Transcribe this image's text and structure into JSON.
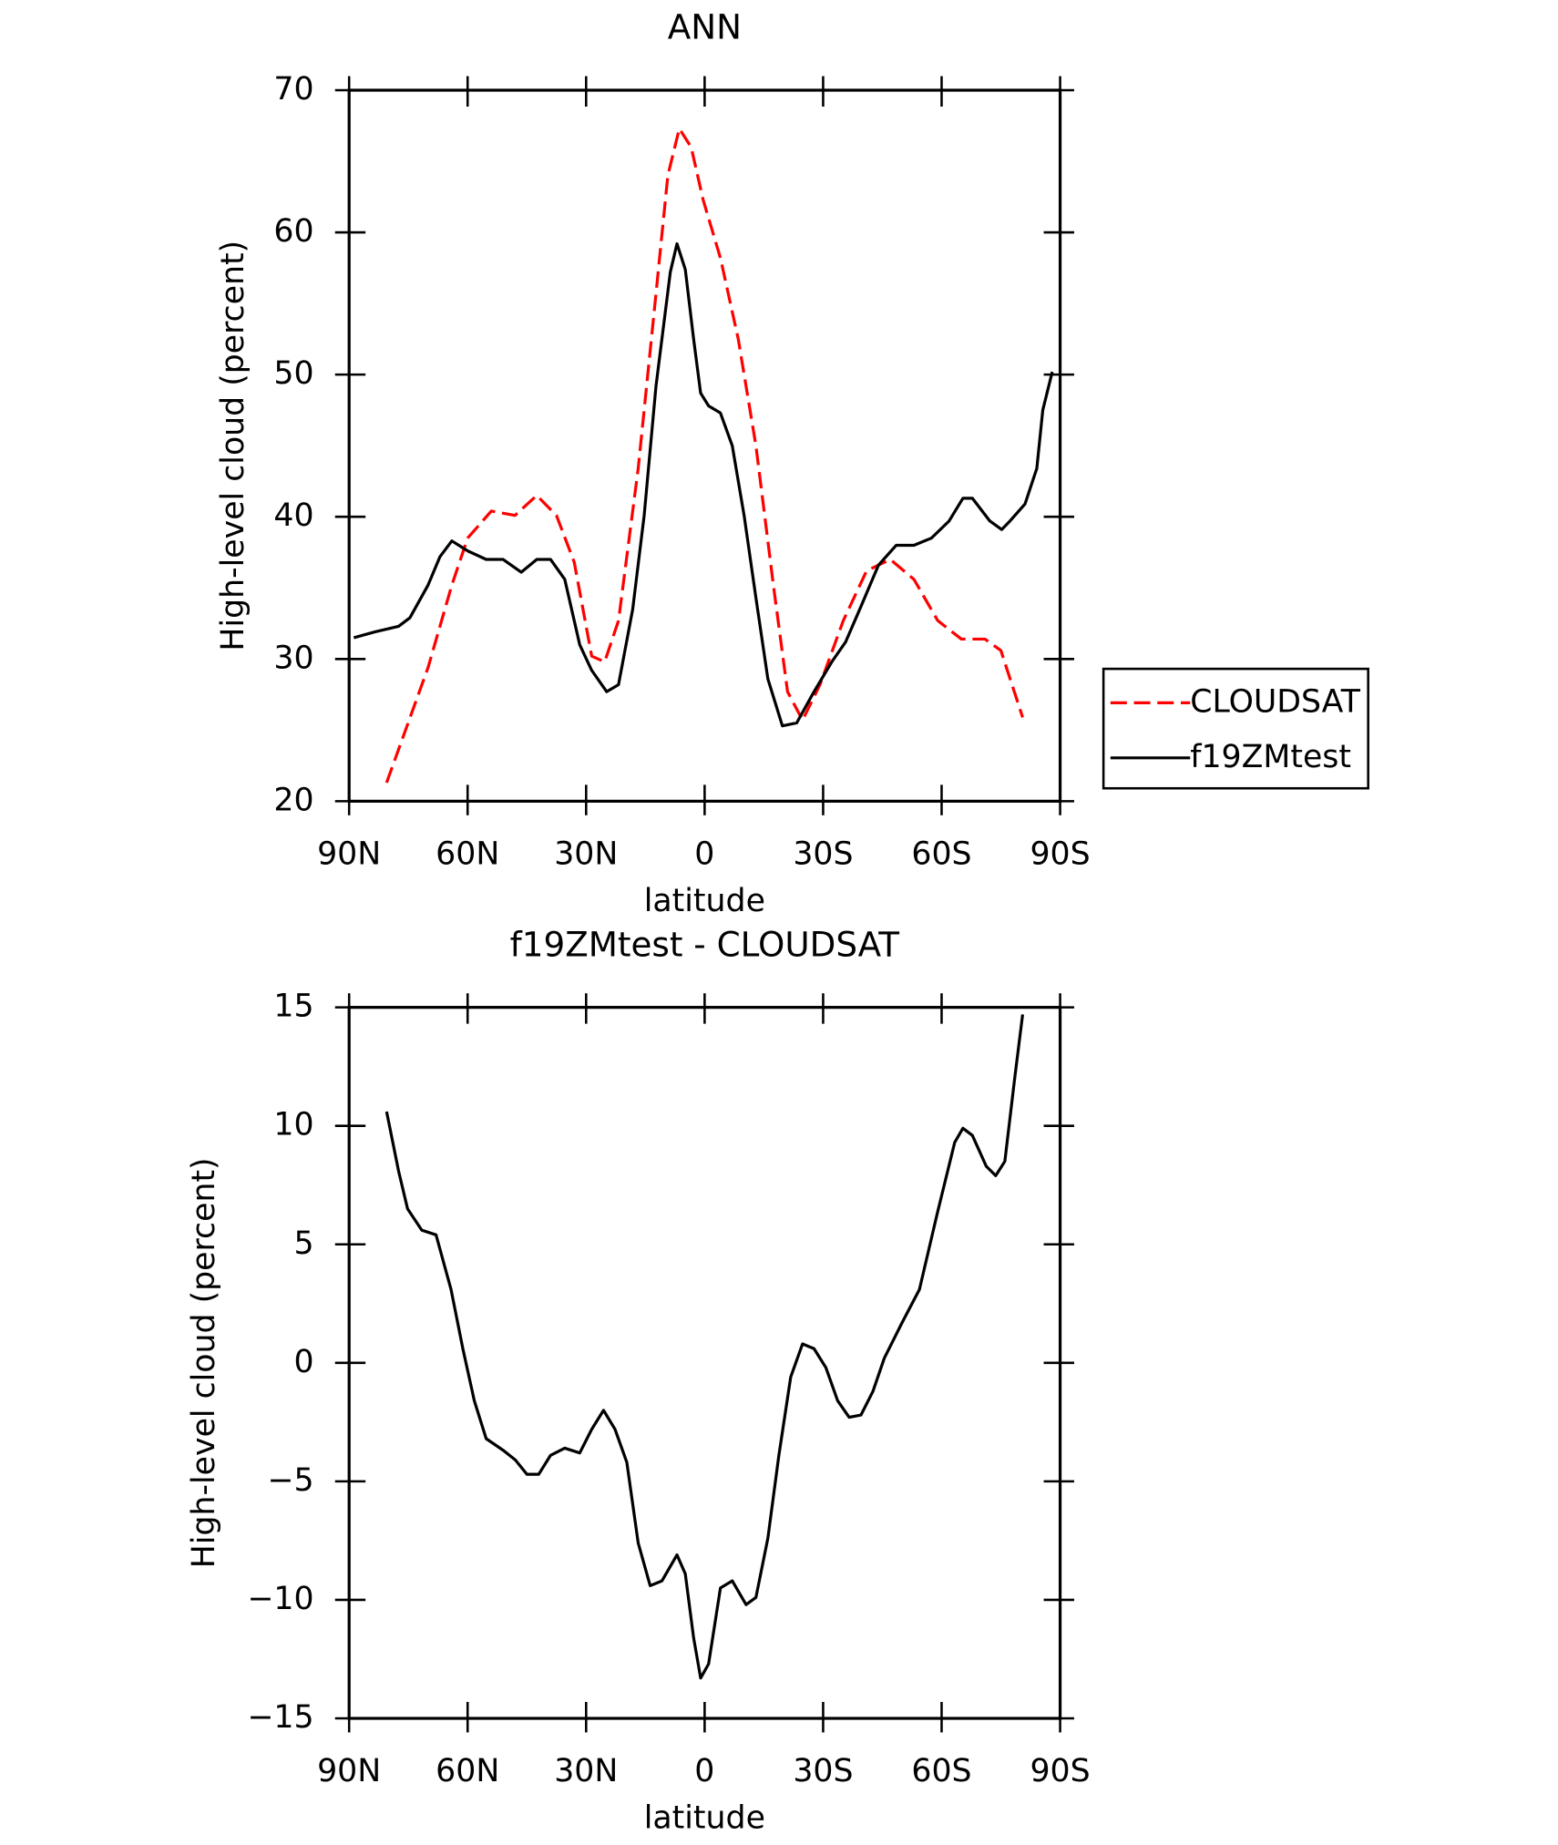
{
  "chart_data": [
    {
      "type": "line",
      "title": "ANN",
      "xlabel": "latitude",
      "ylabel": "High-level cloud (percent)",
      "xlim": [
        90,
        -90
      ],
      "xticks": [
        {
          "value": 90,
          "label": "90N"
        },
        {
          "value": 60,
          "label": "60N"
        },
        {
          "value": 30,
          "label": "30N"
        },
        0,
        {
          "value": -30,
          "label": "30S"
        },
        {
          "value": -60,
          "label": "60S"
        },
        {
          "value": -90,
          "label": "90S"
        }
      ],
      "ylim": [
        20,
        70
      ],
      "yticks": [
        20,
        30,
        40,
        50,
        60,
        70
      ],
      "legend": "right",
      "series": [
        {
          "name": "CLOUDSAT",
          "color": "#ff0000",
          "linestyle": "dashed",
          "x": [
            80.5,
            70,
            64,
            60,
            54,
            48,
            42.5,
            37.5,
            33,
            28.6,
            25.3,
            21.8,
            16.8,
            12.3,
            9.3,
            6.4,
            3.4,
            0.4,
            -4,
            -8.5,
            -13,
            -17.4,
            -21,
            -24.8,
            -29.2,
            -35.1,
            -41,
            -47,
            -53,
            -59,
            -65,
            -71,
            -75,
            -80.5
          ],
          "values": [
            21.3,
            29.4,
            35.2,
            38.5,
            40.4,
            40.1,
            41.5,
            40.1,
            36.8,
            30.2,
            29.8,
            32.7,
            43.4,
            55.7,
            64,
            67.3,
            66,
            62.3,
            58.2,
            52.5,
            45,
            35.2,
            27.7,
            25.7,
            28.2,
            32.7,
            36.2,
            37,
            35.6,
            32.7,
            31.4,
            31.4,
            30.6,
            25.9
          ]
        },
        {
          "name": "f19ZMtest",
          "color": "#000000",
          "linestyle": "solid",
          "x": [
            88.8,
            83.5,
            77.5,
            74.6,
            70,
            67,
            64,
            60,
            55.3,
            51,
            46.4,
            42.5,
            39,
            35.4,
            31.6,
            28.6,
            24.8,
            21.8,
            18.2,
            15.3,
            12.3,
            8.7,
            7,
            4.9,
            2.8,
            1,
            -1,
            -4,
            -7,
            -10,
            -13,
            -16,
            -19.7,
            -23.3,
            -27.7,
            -32.2,
            -35.7,
            -39.6,
            -44,
            -48.5,
            -53,
            -57.4,
            -61.9,
            -65.4,
            -67.8,
            -72.2,
            -75.2,
            -77.3,
            -81.1,
            -84.1,
            -85.6,
            -88
          ],
          "values": [
            31.5,
            31.9,
            32.3,
            32.9,
            35.2,
            37.2,
            38.3,
            37.6,
            37,
            37,
            36.1,
            37,
            37,
            35.6,
            31,
            29.2,
            27.7,
            28.2,
            33.5,
            40.1,
            49.2,
            57.2,
            59.2,
            57.4,
            52.5,
            48.7,
            47.8,
            47.3,
            45,
            40.1,
            34.3,
            28.6,
            25.3,
            25.5,
            27.7,
            29.8,
            31.2,
            33.7,
            36.6,
            38,
            38,
            38.5,
            39.7,
            41.3,
            41.3,
            39.7,
            39.1,
            39.7,
            40.9,
            43.4,
            47.5,
            50.2
          ]
        }
      ]
    },
    {
      "type": "line",
      "title": "f19ZMtest - CLOUDSAT",
      "xlabel": "latitude",
      "ylabel": "High-level cloud (percent)",
      "xlim": [
        90,
        -90
      ],
      "xticks": [
        {
          "value": 90,
          "label": "90N"
        },
        {
          "value": 60,
          "label": "60N"
        },
        {
          "value": 30,
          "label": "30N"
        },
        0,
        {
          "value": -30,
          "label": "30S"
        },
        {
          "value": -60,
          "label": "60S"
        },
        {
          "value": -90,
          "label": "90S"
        }
      ],
      "ylim": [
        -15,
        15
      ],
      "yticks": [
        {
          "value": -15,
          "label": "−15"
        },
        {
          "value": -10,
          "label": "−10"
        },
        {
          "value": -5,
          "label": "−5"
        },
        0,
        5,
        10,
        15
      ],
      "color": "#000000",
      "x": [
        80.5,
        77.5,
        75.2,
        71.6,
        68,
        64.2,
        61.2,
        58.3,
        55.3,
        50.9,
        47.9,
        45,
        42,
        39,
        35.4,
        31.6,
        28.6,
        25.6,
        22.7,
        19.7,
        16.8,
        13.8,
        10.8,
        7,
        4.9,
        2.8,
        1,
        -1,
        -4,
        -7,
        -10.5,
        -13,
        -16,
        -18.8,
        -21.8,
        -24.8,
        -27.7,
        -30.7,
        -33.7,
        -36.6,
        -39.6,
        -42.6,
        -45.5,
        -50,
        -54.4,
        -58.9,
        -63.3,
        -65.4,
        -67.8,
        -71.3,
        -73.7,
        -76,
        -78.5,
        -80.5
      ],
      "values": [
        10.6,
        8.1,
        6.5,
        5.6,
        5.4,
        3.1,
        0.6,
        -1.6,
        -3.2,
        -3.7,
        -4.1,
        -4.7,
        -4.7,
        -3.9,
        -3.6,
        -3.8,
        -2.8,
        -2,
        -2.8,
        -4.2,
        -7.6,
        -9.4,
        -9.2,
        -8.1,
        -8.9,
        -11.6,
        -13.3,
        -12.7,
        -9.5,
        -9.2,
        -10.2,
        -9.9,
        -7.4,
        -3.9,
        -0.6,
        0.8,
        0.6,
        -0.2,
        -1.6,
        -2.3,
        -2.2,
        -1.2,
        0.2,
        1.7,
        3.1,
        6.3,
        9.3,
        9.9,
        9.6,
        8.3,
        7.9,
        8.5,
        12,
        14.7
      ]
    }
  ]
}
